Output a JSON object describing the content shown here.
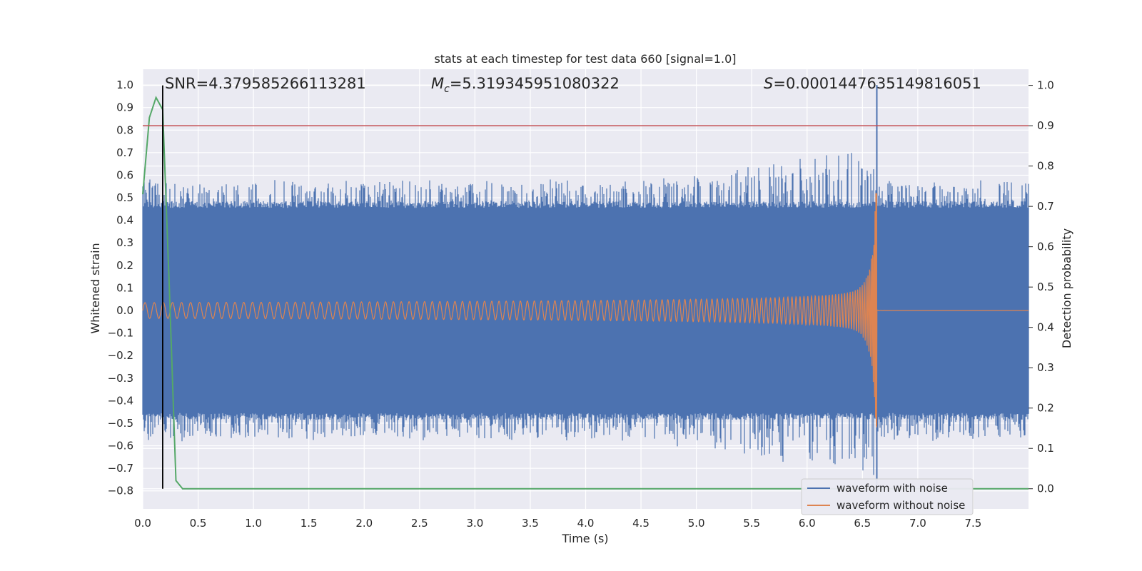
{
  "chart_data": {
    "type": "line",
    "title": "stats at each timestep for test data 660 [signal=1.0]",
    "xlabel": "Time (s)",
    "ylabel_left": "Whitened strain",
    "ylabel_right": "Detection probability",
    "xlim": [
      0.0,
      8.0
    ],
    "ylim_left": [
      -0.88,
      1.07
    ],
    "ylim_right": [
      -0.05,
      1.04
    ],
    "x_ticks": [
      0.0,
      0.5,
      1.0,
      1.5,
      2.0,
      2.5,
      3.0,
      3.5,
      4.0,
      4.5,
      5.0,
      5.5,
      6.0,
      6.5,
      7.0,
      7.5
    ],
    "x_tick_labels": [
      "0.0",
      "0.5",
      "1.0",
      "1.5",
      "2.0",
      "2.5",
      "3.0",
      "3.5",
      "4.0",
      "4.5",
      "5.0",
      "5.5",
      "6.0",
      "6.5",
      "7.0",
      "7.5"
    ],
    "y_left_ticks": [
      1.0,
      0.9,
      0.8,
      0.7,
      0.6,
      0.5,
      0.4,
      0.3,
      0.2,
      0.1,
      0.0,
      -0.1,
      -0.2,
      -0.3,
      -0.4,
      -0.5,
      -0.6,
      -0.7,
      -0.8
    ],
    "y_left_tick_labels": [
      "1.0",
      "0.9",
      "0.8",
      "0.7",
      "0.6",
      "0.5",
      "0.4",
      "0.3",
      "0.2",
      "0.1",
      "0.0",
      "−0.1",
      "−0.2",
      "−0.3",
      "−0.4",
      "−0.5",
      "−0.6",
      "−0.7",
      "−0.8"
    ],
    "y_right_ticks": [
      1.0,
      0.9,
      0.8,
      0.7,
      0.6,
      0.5,
      0.4,
      0.3,
      0.2,
      0.1,
      0.0
    ],
    "y_right_tick_labels": [
      "1.0",
      "0.9",
      "0.8",
      "0.7",
      "0.6",
      "0.5",
      "0.4",
      "0.3",
      "0.2",
      "0.1",
      "0.0"
    ],
    "annotations": {
      "snr": "SNR=4.379585266113281",
      "mc_symbol": "M",
      "mc_subscript": "c",
      "mc_value": "=5.319345951080322",
      "s_symbol": "S",
      "s_value": "=0.00014476351498160​51"
    },
    "series": [
      {
        "name": "waveform with noise",
        "color": "#4c72b0",
        "description_values": {
          "noise_band_upper": 0.47,
          "noise_band_lower": -0.47,
          "peak_time": 6.63,
          "peak_value": 1.0,
          "trough_value": -0.8
        }
      },
      {
        "name": "waveform without noise",
        "color": "#dd8452",
        "envelope": {
          "start_amplitude": 0.035,
          "merger_time": 6.63,
          "peak_value": 0.52,
          "trough_value": -0.42
        }
      },
      {
        "name": "detection probability",
        "color": "#55a868",
        "axis": "right",
        "x": [
          0.0,
          0.06,
          0.12,
          0.18,
          0.24,
          0.3,
          0.36,
          0.42,
          8.0
        ],
        "values": [
          0.73,
          0.92,
          0.97,
          0.94,
          0.5,
          0.02,
          0.0,
          0.0,
          0.0
        ]
      }
    ],
    "threshold_line": {
      "axis": "right",
      "value": 0.9,
      "color": "#c44e52"
    },
    "vertical_marker": {
      "x": 0.18,
      "color": "#000000"
    },
    "legend_position": "bottom-right",
    "legend": [
      {
        "label": "waveform with noise",
        "color": "#4c72b0"
      },
      {
        "label": "waveform without noise",
        "color": "#dd8452"
      }
    ],
    "grid": true,
    "background_color": "#eaeaf2"
  }
}
